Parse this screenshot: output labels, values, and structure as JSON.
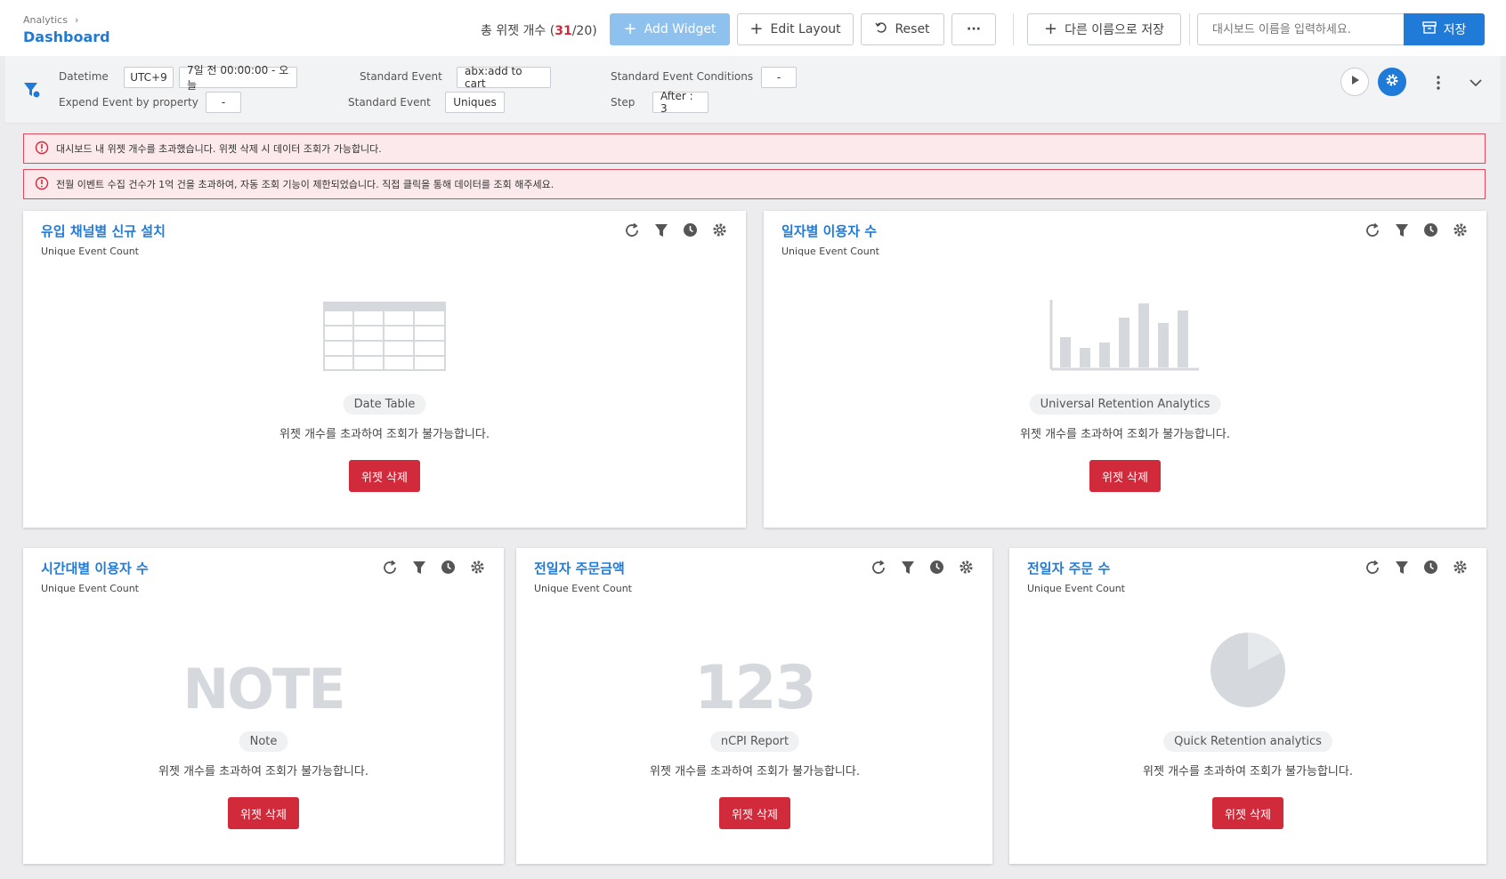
{
  "header": {
    "breadcrumb": "Analytics",
    "title": "Dashboard",
    "widget_count_prefix": "총 위젯 개수 (",
    "widget_count_current": "31",
    "widget_count_suffix": "/20)",
    "add_widget": "Add Widget",
    "edit_layout": "Edit Layout",
    "reset": "Reset",
    "more": "···",
    "save_as": "다른 이름으로 저장",
    "name_placeholder": "대시보드 이름을 입력하세요.",
    "save": "저장"
  },
  "filters": {
    "datetime_label": "Datetime",
    "timezone": "UTC+9",
    "range": "7일 전 00:00:00 - 오늘",
    "expend_label": "Expend Event by property",
    "expend_value": "-",
    "std_event_label_1": "Standard Event",
    "std_event_value_1": "abx:add to cart",
    "std_event_label_2": "Standard Event",
    "std_event_value_2": "Uniques",
    "conditions_label": "Standard Event Conditions",
    "conditions_value": "-",
    "step_label": "Step",
    "step_value": "After : 3"
  },
  "alerts": [
    "대시보드 내 위젯 개수를 초과했습니다. 위젯 삭제 시 데이터 조회가 가능합니다.",
    "전월 이벤트 수집 건수가 1억 건을 초과하여, 자동 조회 기능이 제한되었습니다. 직접 클릭을 통해 데이터를 조회 해주세요."
  ],
  "widgets": [
    {
      "title": "유입 채널별 신규 설치",
      "subtitle": "Unique Event Count",
      "type": "Date Table",
      "message": "위젯 개수를 초과하여 조회가 불가능합니다.",
      "delete": "위젯 삭제"
    },
    {
      "title": "일자별 이용자 수",
      "subtitle": "Unique Event Count",
      "type": "Universal Retention Analytics",
      "message": "위젯 개수를 초과하여 조회가 불가능합니다.",
      "delete": "위젯 삭제"
    },
    {
      "title": "시간대별 이용자 수",
      "subtitle": "Unique Event Count",
      "type": "Note",
      "big": "NOTE",
      "message": "위젯 개수를 초과하여 조회가 불가능합니다.",
      "delete": "위젯 삭제"
    },
    {
      "title": "전일자 주문금액",
      "subtitle": "Unique Event Count",
      "type": "nCPI Report",
      "big": "123",
      "message": "위젯 개수를 초과하여 조회가 불가능합니다.",
      "delete": "위젯 삭제"
    },
    {
      "title": "전일자 주문 수",
      "subtitle": "Unique Event Count",
      "type": "Quick Retention analytics",
      "message": "위젯 개수를 초과하여 조회가 불가능합니다.",
      "delete": "위젯 삭제"
    }
  ],
  "colors": {
    "accent": "#1f7ad8",
    "danger": "#d12a3b",
    "alert_bg": "#fbe9eb"
  },
  "icons": [
    "filter-funnel-icon",
    "play-icon",
    "gear-icon",
    "kebab-icon",
    "chevron-down-icon",
    "refresh-icon",
    "filter-icon",
    "clock-icon",
    "settings-icon",
    "alert-circle-icon"
  ]
}
